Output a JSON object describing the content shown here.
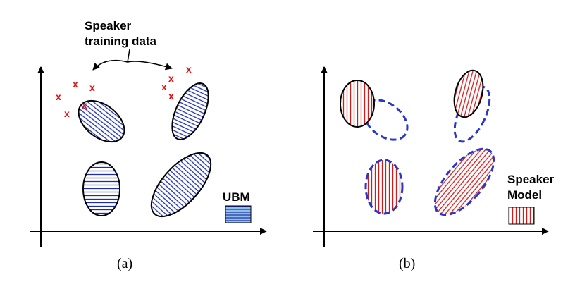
{
  "panel_a": {
    "annotation_line1": "Speaker",
    "annotation_line2": "training data",
    "legend_label": "UBM",
    "caption": "(a)",
    "cross_glyph": "x"
  },
  "panel_b": {
    "legend_line1": "Speaker",
    "legend_line2": "Model",
    "caption": "(b)"
  },
  "colors": {
    "ubm_hatch": "#1f2fa8",
    "speaker_hatch": "#d61a1a",
    "outline": "#000000",
    "dashed_outline": "#2a36c8",
    "crosses": "#e01010",
    "ubm_legend_fill": "#8fc0ea"
  }
}
